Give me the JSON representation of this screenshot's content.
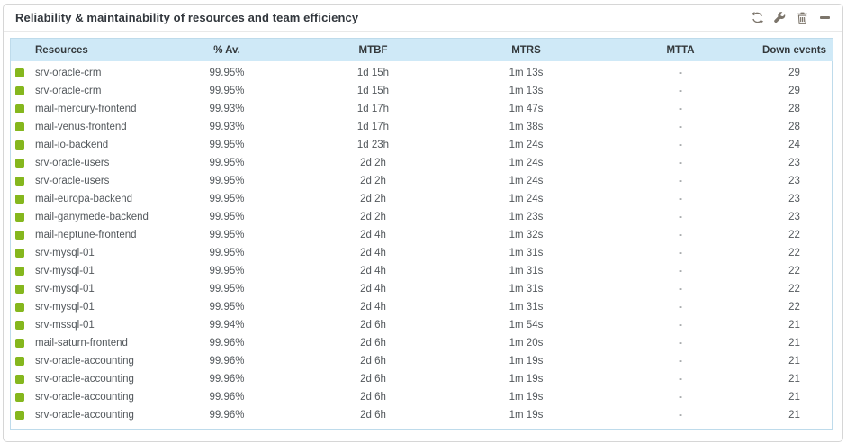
{
  "widget": {
    "title": "Reliability & maintainability of resources and team efficiency",
    "toolbar_icons": [
      "refresh-icon",
      "config-wrench-icon",
      "delete-trash-icon",
      "minimize-icon"
    ]
  },
  "colors": {
    "status_ok": "#85b71e",
    "header_bg": "#cfe9f7",
    "table_border": "#bedbeb",
    "icon": "#7c756b"
  },
  "table": {
    "columns": [
      "Resources",
      "% Av.",
      "MTBF",
      "MTRS",
      "MTTA",
      "Down events"
    ],
    "rows": [
      {
        "resource": "srv-oracle-crm",
        "availability": "99.95%",
        "mtbf": "1d 15h",
        "mtrs": "1m 13s",
        "mtta": "-",
        "down_events": "29"
      },
      {
        "resource": "srv-oracle-crm",
        "availability": "99.95%",
        "mtbf": "1d 15h",
        "mtrs": "1m 13s",
        "mtta": "-",
        "down_events": "29"
      },
      {
        "resource": "mail-mercury-frontend",
        "availability": "99.93%",
        "mtbf": "1d 17h",
        "mtrs": "1m 47s",
        "mtta": "-",
        "down_events": "28"
      },
      {
        "resource": "mail-venus-frontend",
        "availability": "99.93%",
        "mtbf": "1d 17h",
        "mtrs": "1m 38s",
        "mtta": "-",
        "down_events": "28"
      },
      {
        "resource": "mail-io-backend",
        "availability": "99.95%",
        "mtbf": "1d 23h",
        "mtrs": "1m 24s",
        "mtta": "-",
        "down_events": "24"
      },
      {
        "resource": "srv-oracle-users",
        "availability": "99.95%",
        "mtbf": "2d 2h",
        "mtrs": "1m 24s",
        "mtta": "-",
        "down_events": "23"
      },
      {
        "resource": "srv-oracle-users",
        "availability": "99.95%",
        "mtbf": "2d 2h",
        "mtrs": "1m 24s",
        "mtta": "-",
        "down_events": "23"
      },
      {
        "resource": "mail-europa-backend",
        "availability": "99.95%",
        "mtbf": "2d 2h",
        "mtrs": "1m 24s",
        "mtta": "-",
        "down_events": "23"
      },
      {
        "resource": "mail-ganymede-backend",
        "availability": "99.95%",
        "mtbf": "2d 2h",
        "mtrs": "1m 23s",
        "mtta": "-",
        "down_events": "23"
      },
      {
        "resource": "mail-neptune-frontend",
        "availability": "99.95%",
        "mtbf": "2d 4h",
        "mtrs": "1m 32s",
        "mtta": "-",
        "down_events": "22"
      },
      {
        "resource": "srv-mysql-01",
        "availability": "99.95%",
        "mtbf": "2d 4h",
        "mtrs": "1m 31s",
        "mtta": "-",
        "down_events": "22"
      },
      {
        "resource": "srv-mysql-01",
        "availability": "99.95%",
        "mtbf": "2d 4h",
        "mtrs": "1m 31s",
        "mtta": "-",
        "down_events": "22"
      },
      {
        "resource": "srv-mysql-01",
        "availability": "99.95%",
        "mtbf": "2d 4h",
        "mtrs": "1m 31s",
        "mtta": "-",
        "down_events": "22"
      },
      {
        "resource": "srv-mysql-01",
        "availability": "99.95%",
        "mtbf": "2d 4h",
        "mtrs": "1m 31s",
        "mtta": "-",
        "down_events": "22"
      },
      {
        "resource": "srv-mssql-01",
        "availability": "99.94%",
        "mtbf": "2d 6h",
        "mtrs": "1m 54s",
        "mtta": "-",
        "down_events": "21"
      },
      {
        "resource": "mail-saturn-frontend",
        "availability": "99.96%",
        "mtbf": "2d 6h",
        "mtrs": "1m 20s",
        "mtta": "-",
        "down_events": "21"
      },
      {
        "resource": "srv-oracle-accounting",
        "availability": "99.96%",
        "mtbf": "2d 6h",
        "mtrs": "1m 19s",
        "mtta": "-",
        "down_events": "21"
      },
      {
        "resource": "srv-oracle-accounting",
        "availability": "99.96%",
        "mtbf": "2d 6h",
        "mtrs": "1m 19s",
        "mtta": "-",
        "down_events": "21"
      },
      {
        "resource": "srv-oracle-accounting",
        "availability": "99.96%",
        "mtbf": "2d 6h",
        "mtrs": "1m 19s",
        "mtta": "-",
        "down_events": "21"
      },
      {
        "resource": "srv-oracle-accounting",
        "availability": "99.96%",
        "mtbf": "2d 6h",
        "mtrs": "1m 19s",
        "mtta": "-",
        "down_events": "21"
      }
    ]
  }
}
